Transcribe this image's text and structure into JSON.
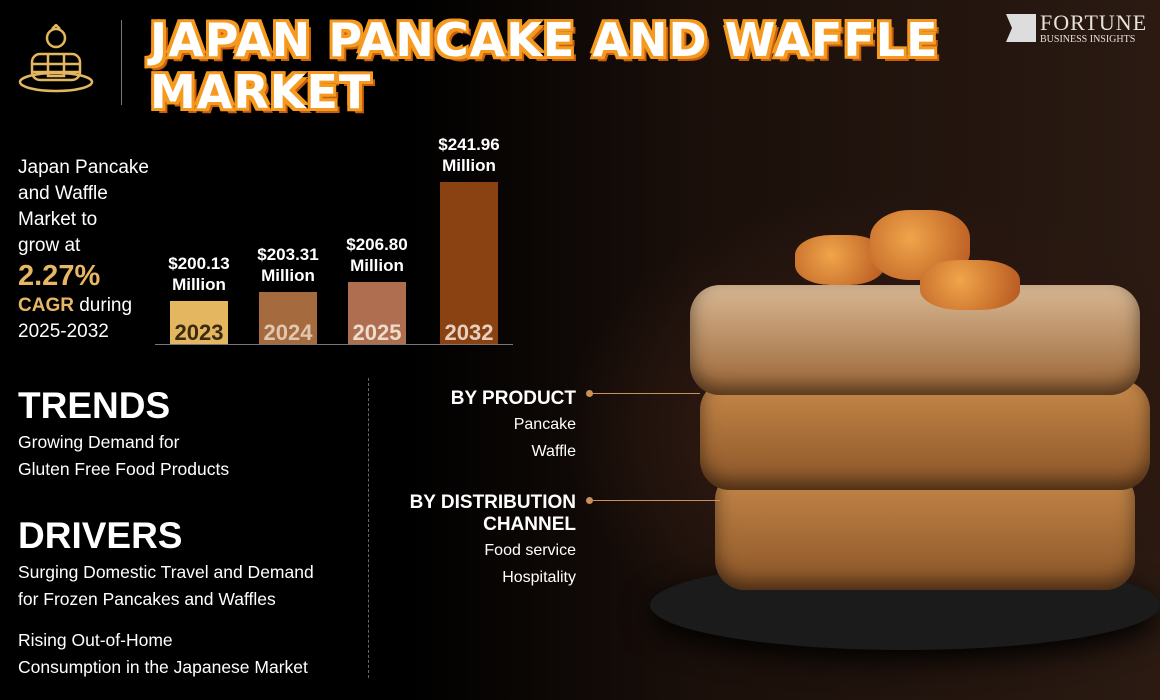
{
  "header": {
    "title_line1": "JAPAN PANCAKE AND WAFFLE",
    "title_line2": "MARKET",
    "logo_name": "FORTUNE",
    "logo_sub": "BUSINESS INSIGHTS",
    "icon": "pancake-stack-icon"
  },
  "summary": {
    "line1": "Japan Pancake",
    "line2": "and Waffle",
    "line3": "Market to",
    "line4": "grow at",
    "cagr": "2.27%",
    "cagr_label": "CAGR",
    "during": " during",
    "period": "2025-2032"
  },
  "chart_data": {
    "type": "bar",
    "categories": [
      "2023",
      "2024",
      "2025",
      "2032"
    ],
    "values": [
      200.13,
      203.31,
      206.8,
      241.96
    ],
    "labels": [
      "$200.13",
      "$203.31",
      "$206.80",
      "$241.96"
    ],
    "unit": "Million",
    "colors": [
      "#e4b660",
      "#a56a3e",
      "#b06e50",
      "#8a4212"
    ],
    "year_colors": [
      "#3a2a10",
      "#e0c8b0",
      "#ecdccc",
      "#e8d0c0"
    ],
    "ylim": [
      185,
      242
    ]
  },
  "trends": {
    "heading": "TRENDS",
    "items": [
      "Growing Demand for",
      "Gluten Free Food Products"
    ]
  },
  "drivers": {
    "heading": "DRIVERS",
    "items": [
      "Surging Domestic Travel and Demand",
      "for Frozen Pancakes and Waffles",
      "Rising Out-of-Home",
      "Consumption in the Japanese Market"
    ]
  },
  "segments": {
    "product": {
      "heading": "BY PRODUCT",
      "items": [
        "Pancake",
        "Waffle"
      ]
    },
    "channel": {
      "heading1": "BY DISTRIBUTION",
      "heading2": "CHANNEL",
      "items": [
        "Food service",
        "Hospitality"
      ]
    }
  },
  "colors": {
    "accent": "#f59a1e",
    "gold": "#e7b765"
  }
}
